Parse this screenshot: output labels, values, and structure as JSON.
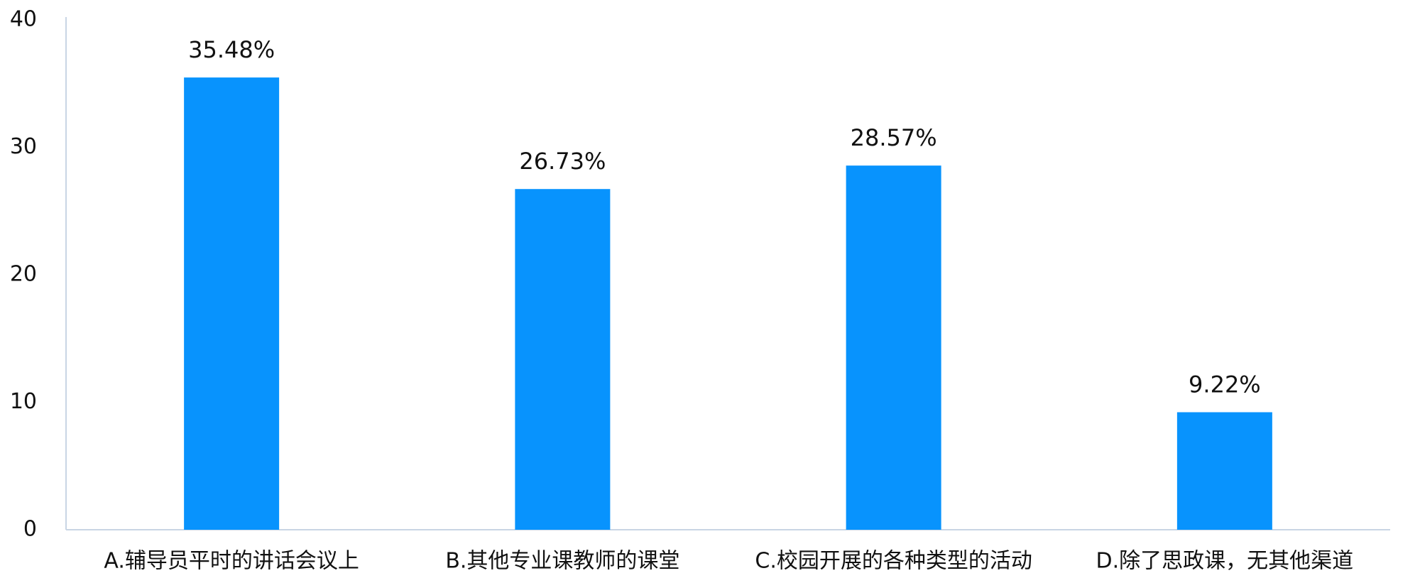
{
  "chart_data": {
    "type": "bar",
    "categories": [
      "A.辅导员平时的讲话会议上",
      "B.其他专业课教师的课堂",
      "C.校园开展的各种类型的活动",
      "D.除了思政课，无其他渠道"
    ],
    "values": [
      35.48,
      26.73,
      28.57,
      9.22
    ],
    "value_labels": [
      "35.48%",
      "26.73%",
      "28.57%",
      "9.22%"
    ],
    "color": "#0893fd",
    "ylim": [
      0,
      40
    ],
    "yticks": [
      0,
      10,
      20,
      30,
      40
    ],
    "grid": false
  }
}
